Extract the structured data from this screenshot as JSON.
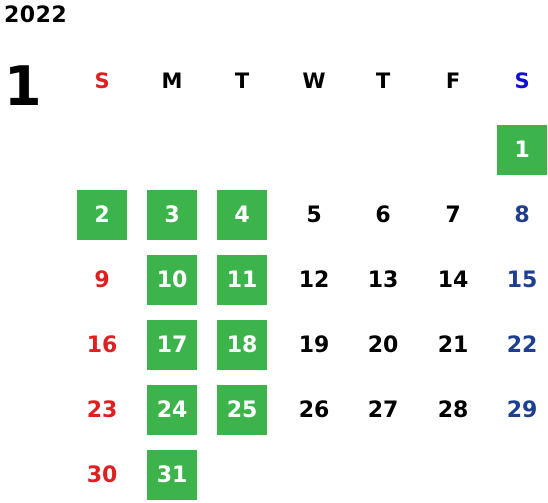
{
  "year": "2022",
  "month": "1",
  "weekdays": [
    "S",
    "M",
    "T",
    "W",
    "T",
    "F",
    "S"
  ],
  "colors": {
    "highlight": "#3cb44b",
    "sunday": "#e02020",
    "saturday": "#1e3f8f",
    "saturday_header": "#1010d0"
  },
  "weeks": [
    [
      "",
      "",
      "",
      "",
      "",
      "",
      "1"
    ],
    [
      "2",
      "3",
      "4",
      "5",
      "6",
      "7",
      "8"
    ],
    [
      "9",
      "10",
      "11",
      "12",
      "13",
      "14",
      "15"
    ],
    [
      "16",
      "17",
      "18",
      "19",
      "20",
      "21",
      "22"
    ],
    [
      "23",
      "24",
      "25",
      "26",
      "27",
      "28",
      "29"
    ],
    [
      "30",
      "31",
      "",
      "",
      "",
      "",
      ""
    ]
  ],
  "highlighted_days": [
    "1",
    "2",
    "3",
    "4",
    "10",
    "11",
    "17",
    "18",
    "24",
    "25",
    "31"
  ]
}
